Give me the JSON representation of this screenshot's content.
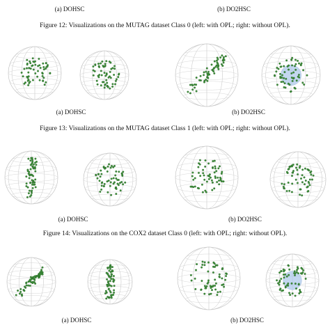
{
  "figures": [
    {
      "subcaptions": [
        "(a) DOHSC",
        "(b) DO2HSC"
      ],
      "caption": "Figure 12: Visualizations on the MUTAG dataset Class 0 (left: with OPL; right: without OPL)."
    },
    {
      "subcaptions": [
        "(a) DOHSC",
        "(b) DO2HSC"
      ],
      "caption": "Figure 13: Visualizations on the MUTAG dataset Class 1 (left: with OPL; right: without OPL)."
    },
    {
      "subcaptions": [
        "(a) DOHSC",
        "(b) DO2HSC"
      ],
      "caption": "Figure 14: Visualizations on the COX2 dataset Class 0 (left: with OPL; right: without OPL)."
    },
    {
      "subcaptions": [
        "(a) DOHSC",
        "(b) DO2HSC"
      ]
    }
  ]
}
